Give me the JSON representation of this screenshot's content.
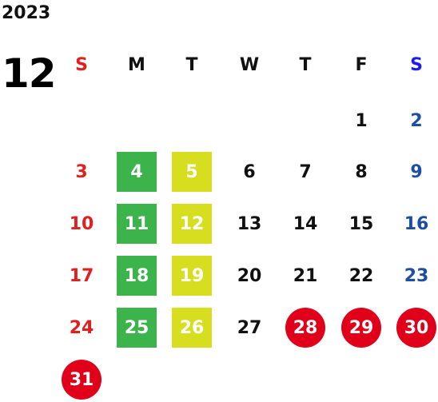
{
  "year": "2023",
  "month": "12",
  "weekday_headers": [
    "S",
    "M",
    "T",
    "W",
    "T",
    "F",
    "S"
  ],
  "weeks": [
    [
      "",
      "",
      "",
      "",
      "",
      "1",
      "2"
    ],
    [
      "3",
      "4",
      "5",
      "6",
      "7",
      "8",
      "9"
    ],
    [
      "10",
      "11",
      "12",
      "13",
      "14",
      "15",
      "16"
    ],
    [
      "17",
      "18",
      "19",
      "20",
      "21",
      "22",
      "23"
    ],
    [
      "24",
      "25",
      "26",
      "27",
      "28",
      "29",
      "30"
    ],
    [
      "31",
      "",
      "",
      "",
      "",
      "",
      ""
    ]
  ],
  "highlight_styles": {
    "4": "green",
    "11": "green",
    "18": "green",
    "25": "green",
    "5": "yellow",
    "12": "yellow",
    "19": "yellow",
    "26": "yellow",
    "28": "red-circle",
    "29": "red-circle",
    "30": "red-circle",
    "31": "red-circle"
  },
  "colors": {
    "sunday": "#e02020",
    "saturday_header": "#1a1aff",
    "saturday": "#1c4fa0",
    "weekday": "#111111",
    "green": "#3cb44b",
    "yellow": "#d7de20",
    "red": "#e0001a"
  }
}
